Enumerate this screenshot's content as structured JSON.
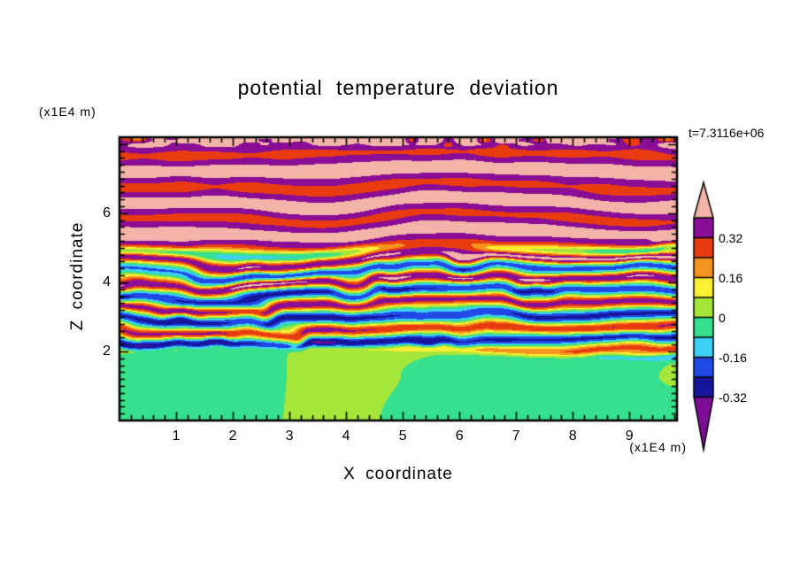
{
  "colors": {
    "background": "#ffffff",
    "text": "#000000",
    "frame": "#000000"
  },
  "chart_data": {
    "type": "heatmap",
    "title": "potential temperature deviation",
    "annotation": "t=7.3116e+06",
    "xlabel": "X coordinate",
    "ylabel": "Z coordinate",
    "x_unit_label": "(x1E4 m)",
    "y_unit_label": "(x1E4 m)",
    "x_range": [
      0,
      9.84
    ],
    "y_range": [
      0,
      8.2
    ],
    "x_ticks": [
      1,
      2,
      3,
      4,
      5,
      6,
      7,
      8,
      9
    ],
    "y_ticks": [
      2,
      4,
      6
    ],
    "minor_tick_step": 0.2,
    "grid": false,
    "legend_position": "right-colorbar",
    "colorbar": {
      "labels": [
        "0.32",
        "0.16",
        "0",
        "-0.16",
        "-0.32"
      ],
      "label_values": [
        0.32,
        0.16,
        0,
        -0.16,
        -0.32
      ],
      "levels": [
        -0.32,
        -0.24,
        -0.16,
        -0.08,
        0,
        0.08,
        0.16,
        0.24,
        0.32,
        0.4
      ],
      "colors": [
        "#7d0d96",
        "#16169c",
        "#2149e6",
        "#3ed0f5",
        "#36e08c",
        "#a6e63a",
        "#fdf032",
        "#f59420",
        "#e83c10",
        "#8a0d96",
        "#f2b3a8"
      ]
    },
    "field": {
      "description": "Vertical cross-section of potential temperature deviation: smooth slightly-negative (green) convective layer below z~2e4 m, strongly oscillating multicolour turbulent shear layers between z~2e4 and z~5e4 m (values swinging about -0.32..+0.32), and stratified gravity-wave bands above z~5e4 m alternating between the 0.32-0.40 (purple) and >0.40 (pink) bins.",
      "layers": [
        {
          "name": "convective-boundary-layer",
          "z_max": 2.0,
          "mean": -0.025,
          "noise_amp": 0.06
        },
        {
          "name": "turbulent-shear-layers",
          "z_min": 2.0,
          "z_max": 5.1,
          "mean_gradient": 0.04,
          "wave_amp": 0.3,
          "z_frequency": 1.55
        },
        {
          "name": "stratified-waves",
          "z_min": 5.1,
          "mean": 0.375,
          "wave_amp": 0.075,
          "z_frequency": 1.15
        }
      ]
    }
  }
}
